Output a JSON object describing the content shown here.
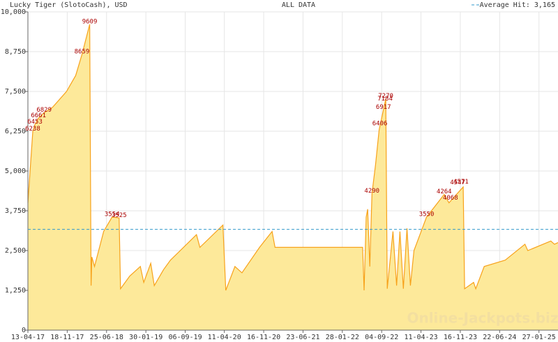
{
  "chart_data": {
    "type": "area",
    "title": "Lucky Tiger (SlotoCash), USD",
    "subtitle": "ALL DATA",
    "watermark": "Online-Jackpots.biz",
    "average": {
      "value": 3165,
      "label": "Average Hit: 3,165",
      "color": "#3399cc"
    },
    "color": "#f7a21b",
    "fill": "#fde99a",
    "grid": true,
    "xlim": [
      "13-04-17",
      "13-05-25"
    ],
    "xticks": [
      "13-04-17",
      "18-11-17",
      "25-06-18",
      "30-01-19",
      "06-09-19",
      "11-04-20",
      "16-11-20",
      "23-06-21",
      "28-01-22",
      "04-09-22",
      "11-04-23",
      "16-11-23",
      "22-06-24",
      "27-01-25"
    ],
    "ylim": [
      0,
      10000
    ],
    "yticks": [
      0,
      {
        "value": 1250,
        "label": "1,250"
      },
      {
        "value": 2500,
        "label": "2,500"
      },
      {
        "value": 3750,
        "label": "3,750"
      },
      {
        "value": 5000,
        "label": "5,000"
      },
      {
        "value": 6250,
        "label": "6,250"
      },
      {
        "value": 7500,
        "label": "7,500"
      },
      {
        "value": 8750,
        "label": "8,750"
      },
      {
        "value": 10000,
        "label": "10,000"
      }
    ],
    "x": [
      "13-04-17",
      "10-05-17",
      "22-05-17",
      "11-06-17",
      "12-07-17",
      "28-08-17",
      "14-11-17",
      "04-01-18",
      "08-02-18",
      "23-03-18",
      "31-03-18",
      "04-04-18",
      "19-04-18",
      "09-06-18",
      "26-07-18",
      "03-09-18",
      "11-09-18",
      "01-11-18",
      "30-12-18",
      "18-01-19",
      "26-02-19",
      "18-03-19",
      "08-05-19",
      "16-06-19",
      "08-11-19",
      "27-11-19",
      "03-04-20",
      "19-04-20",
      "09-06-20",
      "18-07-20",
      "24-10-20",
      "02-01-21",
      "18-01-21",
      "21-05-22",
      "29-05-22",
      "10-06-22",
      "18-06-22",
      "30-06-22",
      "12-07-22",
      "01-08-22",
      "21-08-22",
      "27-09-22",
      "05-10-22",
      "06-11-22",
      "26-11-22",
      "15-12-22",
      "03-01-23",
      "23-01-23",
      "11-02-23",
      "03-03-23",
      "12-05-23",
      "18-08-23",
      "14-09-23",
      "02-12-23",
      "10-12-23",
      "29-01-24",
      "10-02-24",
      "28-03-24",
      "23-07-24",
      "10-11-24",
      "26-11-24",
      "03-04-25",
      "23-04-25",
      "13-05-25"
    ],
    "values": [
      4000,
      6238,
      6453,
      6661,
      6829,
      7000,
      7500,
      8000,
      8659,
      9609,
      1400,
      2300,
      2000,
      3100,
      3554,
      3525,
      1300,
      1700,
      2000,
      1500,
      2100,
      1400,
      1900,
      2200,
      3000,
      2600,
      3300,
      1250,
      2000,
      1800,
      2600,
      3100,
      2600,
      2600,
      1250,
      3550,
      3800,
      2000,
      4290,
      5200,
      6300,
      7270,
      1300,
      3100,
      1400,
      3100,
      1300,
      3200,
      1400,
      2500,
      3550,
      4264,
      4000,
      4500,
      1300,
      1500,
      1300,
      2000,
      2200,
      2700,
      2500,
      2800,
      2700,
      2750
    ],
    "annotations": [
      {
        "x": "10-05-17",
        "value": 6238
      },
      {
        "x": "22-05-17",
        "value": 6453
      },
      {
        "x": "11-06-17",
        "value": 6661
      },
      {
        "x": "12-07-17",
        "value": 6829
      },
      {
        "x": "08-02-18",
        "value": 8659
      },
      {
        "x": "23-03-18",
        "value": 9609
      },
      {
        "x": "26-07-18",
        "value": 3554
      },
      {
        "x": "03-09-18",
        "value": 3525
      },
      {
        "x": "12-07-22",
        "value": 4290
      },
      {
        "x": "25-08-22",
        "value": 6406
      },
      {
        "x": "14-09-22",
        "value": 6917
      },
      {
        "x": "23-09-22",
        "value": 7184
      },
      {
        "x": "27-09-22",
        "value": 7270
      },
      {
        "x": "12-05-23",
        "value": 3550
      },
      {
        "x": "18-08-23",
        "value": 4264
      },
      {
        "x": "22-09-23",
        "value": 4068
      },
      {
        "x": "01-11-23",
        "value": 4547
      },
      {
        "x": "20-11-23",
        "value": 4571
      }
    ]
  }
}
